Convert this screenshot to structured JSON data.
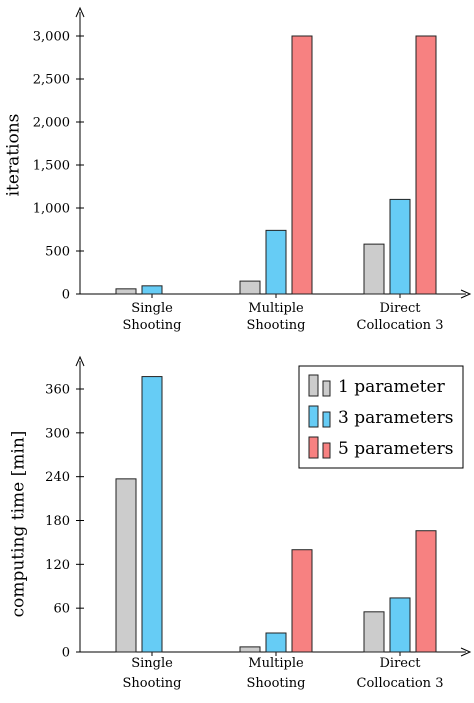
{
  "chart_data": [
    {
      "type": "bar",
      "title": "",
      "xlabel": "",
      "ylabel": "iterations",
      "categories": [
        [
          "Single",
          "Shooting"
        ],
        [
          "Multiple",
          "Shooting"
        ],
        [
          "Direct",
          "Collocation 3"
        ]
      ],
      "series": [
        {
          "name": "1 parameter",
          "color": "#cccccc",
          "values": [
            60,
            150,
            580
          ]
        },
        {
          "name": "3 parameters",
          "color": "#66ccf5",
          "values": [
            95,
            740,
            1100
          ]
        },
        {
          "name": "5 parameters",
          "color": "#f78181",
          "values": [
            null,
            3000,
            3000
          ]
        }
      ],
      "ylim": [
        0,
        3000
      ],
      "yticks": [
        0,
        500,
        1000,
        1500,
        2000,
        2500,
        3000
      ],
      "ytick_labels": [
        "0",
        "500",
        "1,000",
        "1,500",
        "2,000",
        "2,500",
        "3,000"
      ],
      "grid": false,
      "legend": false
    },
    {
      "type": "bar",
      "title": "",
      "xlabel": "",
      "ylabel": "computing time [min]",
      "categories": [
        [
          "Single",
          "Shooting"
        ],
        [
          "Multiple",
          "Shooting"
        ],
        [
          "Direct",
          "Collocation 3"
        ]
      ],
      "series": [
        {
          "name": "1 parameter",
          "color": "#cccccc",
          "values": [
            237,
            7,
            55
          ]
        },
        {
          "name": "3 parameters",
          "color": "#66ccf5",
          "values": [
            377,
            26,
            74
          ]
        },
        {
          "name": "5 parameters",
          "color": "#f78181",
          "values": [
            null,
            140,
            166
          ]
        }
      ],
      "ylim": [
        0,
        380
      ],
      "yticks": [
        0,
        60,
        120,
        180,
        240,
        300,
        360
      ],
      "ytick_labels": [
        "0",
        "60",
        "120",
        "180",
        "240",
        "300",
        "360"
      ],
      "grid": false,
      "legend": true,
      "legend_position": "top-right"
    }
  ]
}
